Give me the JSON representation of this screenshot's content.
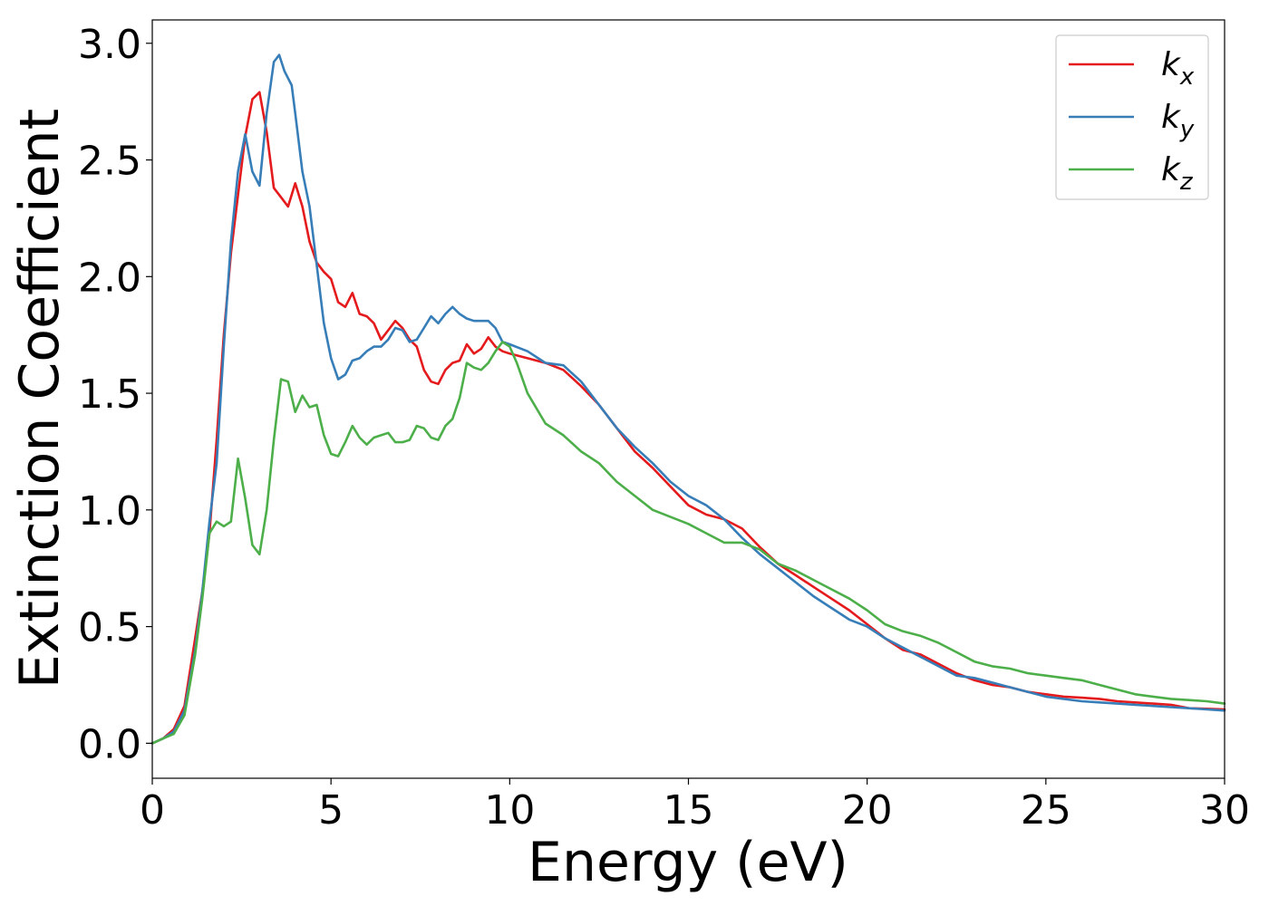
{
  "chart_data": {
    "type": "line",
    "xlabel": "Energy (eV)",
    "ylabel": "Extinction Coefficient",
    "xlim": [
      0,
      30
    ],
    "ylim": [
      -0.15,
      3.1
    ],
    "x_ticks": [
      0,
      5,
      10,
      15,
      20,
      25,
      30
    ],
    "x_tick_labels": [
      "0",
      "5",
      "10",
      "15",
      "20",
      "25",
      "30"
    ],
    "y_ticks": [
      0.0,
      0.5,
      1.0,
      1.5,
      2.0,
      2.5,
      3.0
    ],
    "y_tick_labels": [
      "0.0",
      "0.5",
      "1.0",
      "1.5",
      "2.0",
      "2.5",
      "3.0"
    ],
    "grid": false,
    "legend_position": "top-right",
    "series": [
      {
        "name": "k_x",
        "label_main": "k",
        "label_sub": "x",
        "color": "#e41a1c",
        "points": [
          [
            0,
            0
          ],
          [
            0.3,
            0.02
          ],
          [
            0.6,
            0.06
          ],
          [
            0.9,
            0.16
          ],
          [
            1.2,
            0.45
          ],
          [
            1.4,
            0.65
          ],
          [
            1.6,
            0.9
          ],
          [
            1.8,
            1.3
          ],
          [
            2.0,
            1.75
          ],
          [
            2.2,
            2.1
          ],
          [
            2.4,
            2.35
          ],
          [
            2.6,
            2.6
          ],
          [
            2.8,
            2.76
          ],
          [
            3.0,
            2.79
          ],
          [
            3.2,
            2.62
          ],
          [
            3.4,
            2.38
          ],
          [
            3.6,
            2.34
          ],
          [
            3.8,
            2.3
          ],
          [
            4.0,
            2.4
          ],
          [
            4.2,
            2.3
          ],
          [
            4.4,
            2.15
          ],
          [
            4.6,
            2.06
          ],
          [
            4.8,
            2.02
          ],
          [
            5.0,
            1.99
          ],
          [
            5.2,
            1.89
          ],
          [
            5.4,
            1.87
          ],
          [
            5.6,
            1.93
          ],
          [
            5.8,
            1.84
          ],
          [
            6.0,
            1.83
          ],
          [
            6.2,
            1.8
          ],
          [
            6.4,
            1.73
          ],
          [
            6.6,
            1.77
          ],
          [
            6.8,
            1.81
          ],
          [
            7.0,
            1.78
          ],
          [
            7.2,
            1.73
          ],
          [
            7.4,
            1.7
          ],
          [
            7.6,
            1.6
          ],
          [
            7.8,
            1.55
          ],
          [
            8.0,
            1.54
          ],
          [
            8.2,
            1.6
          ],
          [
            8.4,
            1.63
          ],
          [
            8.6,
            1.64
          ],
          [
            8.8,
            1.71
          ],
          [
            9.0,
            1.67
          ],
          [
            9.2,
            1.69
          ],
          [
            9.4,
            1.74
          ],
          [
            9.6,
            1.7
          ],
          [
            9.8,
            1.68
          ],
          [
            10.0,
            1.67
          ],
          [
            10.5,
            1.65
          ],
          [
            11.0,
            1.63
          ],
          [
            11.5,
            1.6
          ],
          [
            12.0,
            1.53
          ],
          [
            12.5,
            1.45
          ],
          [
            13.0,
            1.35
          ],
          [
            13.5,
            1.25
          ],
          [
            14.0,
            1.18
          ],
          [
            14.5,
            1.1
          ],
          [
            15.0,
            1.02
          ],
          [
            15.5,
            0.98
          ],
          [
            16.0,
            0.96
          ],
          [
            16.5,
            0.92
          ],
          [
            17.0,
            0.84
          ],
          [
            17.5,
            0.77
          ],
          [
            18.0,
            0.72
          ],
          [
            18.5,
            0.67
          ],
          [
            19.0,
            0.62
          ],
          [
            19.5,
            0.57
          ],
          [
            20.0,
            0.51
          ],
          [
            20.5,
            0.45
          ],
          [
            21.0,
            0.4
          ],
          [
            21.5,
            0.38
          ],
          [
            22.0,
            0.34
          ],
          [
            22.5,
            0.3
          ],
          [
            23.0,
            0.27
          ],
          [
            23.5,
            0.25
          ],
          [
            24.0,
            0.24
          ],
          [
            24.5,
            0.22
          ],
          [
            25.0,
            0.21
          ],
          [
            25.5,
            0.2
          ],
          [
            26.0,
            0.195
          ],
          [
            26.5,
            0.19
          ],
          [
            27.0,
            0.18
          ],
          [
            27.5,
            0.175
          ],
          [
            28.0,
            0.17
          ],
          [
            28.5,
            0.165
          ],
          [
            29.0,
            0.15
          ],
          [
            29.5,
            0.148
          ],
          [
            30.0,
            0.145
          ]
        ]
      },
      {
        "name": "k_y",
        "label_main": "k",
        "label_sub": "y",
        "color": "#377eb8",
        "points": [
          [
            0,
            0
          ],
          [
            0.3,
            0.02
          ],
          [
            0.6,
            0.05
          ],
          [
            0.9,
            0.14
          ],
          [
            1.2,
            0.4
          ],
          [
            1.4,
            0.65
          ],
          [
            1.6,
            0.95
          ],
          [
            1.8,
            1.2
          ],
          [
            2.0,
            1.7
          ],
          [
            2.2,
            2.15
          ],
          [
            2.4,
            2.45
          ],
          [
            2.6,
            2.61
          ],
          [
            2.8,
            2.45
          ],
          [
            3.0,
            2.39
          ],
          [
            3.2,
            2.7
          ],
          [
            3.4,
            2.92
          ],
          [
            3.55,
            2.95
          ],
          [
            3.7,
            2.88
          ],
          [
            3.9,
            2.82
          ],
          [
            4.0,
            2.7
          ],
          [
            4.2,
            2.45
          ],
          [
            4.4,
            2.3
          ],
          [
            4.6,
            2.05
          ],
          [
            4.8,
            1.8
          ],
          [
            5.0,
            1.65
          ],
          [
            5.2,
            1.56
          ],
          [
            5.4,
            1.58
          ],
          [
            5.6,
            1.64
          ],
          [
            5.8,
            1.65
          ],
          [
            6.0,
            1.68
          ],
          [
            6.2,
            1.7
          ],
          [
            6.4,
            1.7
          ],
          [
            6.6,
            1.73
          ],
          [
            6.8,
            1.78
          ],
          [
            7.0,
            1.77
          ],
          [
            7.2,
            1.72
          ],
          [
            7.4,
            1.73
          ],
          [
            7.6,
            1.78
          ],
          [
            7.8,
            1.83
          ],
          [
            8.0,
            1.8
          ],
          [
            8.2,
            1.84
          ],
          [
            8.4,
            1.87
          ],
          [
            8.6,
            1.84
          ],
          [
            8.8,
            1.82
          ],
          [
            9.0,
            1.81
          ],
          [
            9.4,
            1.81
          ],
          [
            9.6,
            1.78
          ],
          [
            9.8,
            1.72
          ],
          [
            10.0,
            1.71
          ],
          [
            10.5,
            1.68
          ],
          [
            11.0,
            1.63
          ],
          [
            11.5,
            1.62
          ],
          [
            12.0,
            1.55
          ],
          [
            12.5,
            1.45
          ],
          [
            13.0,
            1.35
          ],
          [
            13.5,
            1.27
          ],
          [
            14.0,
            1.2
          ],
          [
            14.5,
            1.12
          ],
          [
            15.0,
            1.06
          ],
          [
            15.5,
            1.02
          ],
          [
            16.0,
            0.96
          ],
          [
            16.5,
            0.88
          ],
          [
            17.0,
            0.81
          ],
          [
            17.5,
            0.75
          ],
          [
            18.0,
            0.69
          ],
          [
            18.5,
            0.63
          ],
          [
            19.0,
            0.58
          ],
          [
            19.5,
            0.53
          ],
          [
            20.0,
            0.5
          ],
          [
            20.5,
            0.45
          ],
          [
            21.0,
            0.41
          ],
          [
            21.5,
            0.37
          ],
          [
            22.0,
            0.33
          ],
          [
            22.5,
            0.29
          ],
          [
            23.0,
            0.28
          ],
          [
            23.5,
            0.26
          ],
          [
            24.0,
            0.24
          ],
          [
            24.5,
            0.22
          ],
          [
            25.0,
            0.2
          ],
          [
            25.5,
            0.19
          ],
          [
            26.0,
            0.18
          ],
          [
            26.5,
            0.175
          ],
          [
            27.0,
            0.17
          ],
          [
            27.5,
            0.165
          ],
          [
            28.0,
            0.16
          ],
          [
            28.5,
            0.155
          ],
          [
            29.0,
            0.15
          ],
          [
            29.5,
            0.145
          ],
          [
            30.0,
            0.14
          ]
        ]
      },
      {
        "name": "k_z",
        "label_main": "k",
        "label_sub": "z",
        "color": "#4daf4a",
        "points": [
          [
            0,
            0
          ],
          [
            0.3,
            0.02
          ],
          [
            0.6,
            0.04
          ],
          [
            0.9,
            0.12
          ],
          [
            1.2,
            0.38
          ],
          [
            1.4,
            0.62
          ],
          [
            1.6,
            0.9
          ],
          [
            1.8,
            0.95
          ],
          [
            2.0,
            0.93
          ],
          [
            2.2,
            0.95
          ],
          [
            2.4,
            1.22
          ],
          [
            2.6,
            1.05
          ],
          [
            2.8,
            0.85
          ],
          [
            3.0,
            0.81
          ],
          [
            3.2,
            1.0
          ],
          [
            3.4,
            1.3
          ],
          [
            3.6,
            1.56
          ],
          [
            3.8,
            1.55
          ],
          [
            4.0,
            1.42
          ],
          [
            4.2,
            1.49
          ],
          [
            4.4,
            1.44
          ],
          [
            4.6,
            1.45
          ],
          [
            4.8,
            1.32
          ],
          [
            5.0,
            1.24
          ],
          [
            5.2,
            1.23
          ],
          [
            5.4,
            1.29
          ],
          [
            5.6,
            1.36
          ],
          [
            5.8,
            1.31
          ],
          [
            6.0,
            1.28
          ],
          [
            6.2,
            1.31
          ],
          [
            6.4,
            1.32
          ],
          [
            6.6,
            1.33
          ],
          [
            6.8,
            1.29
          ],
          [
            7.0,
            1.29
          ],
          [
            7.2,
            1.3
          ],
          [
            7.4,
            1.36
          ],
          [
            7.6,
            1.35
          ],
          [
            7.8,
            1.31
          ],
          [
            8.0,
            1.3
          ],
          [
            8.2,
            1.36
          ],
          [
            8.4,
            1.39
          ],
          [
            8.6,
            1.48
          ],
          [
            8.8,
            1.63
          ],
          [
            9.0,
            1.61
          ],
          [
            9.2,
            1.6
          ],
          [
            9.4,
            1.63
          ],
          [
            9.6,
            1.68
          ],
          [
            9.8,
            1.72
          ],
          [
            10.0,
            1.7
          ],
          [
            10.2,
            1.63
          ],
          [
            10.5,
            1.5
          ],
          [
            11.0,
            1.37
          ],
          [
            11.5,
            1.32
          ],
          [
            12.0,
            1.25
          ],
          [
            12.5,
            1.2
          ],
          [
            13.0,
            1.12
          ],
          [
            13.5,
            1.06
          ],
          [
            14.0,
            1.0
          ],
          [
            14.5,
            0.97
          ],
          [
            15.0,
            0.94
          ],
          [
            15.5,
            0.9
          ],
          [
            16.0,
            0.86
          ],
          [
            16.5,
            0.86
          ],
          [
            17.0,
            0.83
          ],
          [
            17.5,
            0.77
          ],
          [
            18.0,
            0.74
          ],
          [
            18.5,
            0.7
          ],
          [
            19.0,
            0.66
          ],
          [
            19.5,
            0.62
          ],
          [
            20.0,
            0.57
          ],
          [
            20.5,
            0.51
          ],
          [
            21.0,
            0.48
          ],
          [
            21.5,
            0.46
          ],
          [
            22.0,
            0.43
          ],
          [
            22.5,
            0.39
          ],
          [
            23.0,
            0.35
          ],
          [
            23.5,
            0.33
          ],
          [
            24.0,
            0.32
          ],
          [
            24.5,
            0.3
          ],
          [
            25.0,
            0.29
          ],
          [
            25.5,
            0.28
          ],
          [
            26.0,
            0.27
          ],
          [
            26.5,
            0.25
          ],
          [
            27.0,
            0.23
          ],
          [
            27.5,
            0.21
          ],
          [
            28.0,
            0.2
          ],
          [
            28.5,
            0.19
          ],
          [
            29.0,
            0.185
          ],
          [
            29.5,
            0.18
          ],
          [
            30.0,
            0.17
          ]
        ]
      }
    ]
  }
}
